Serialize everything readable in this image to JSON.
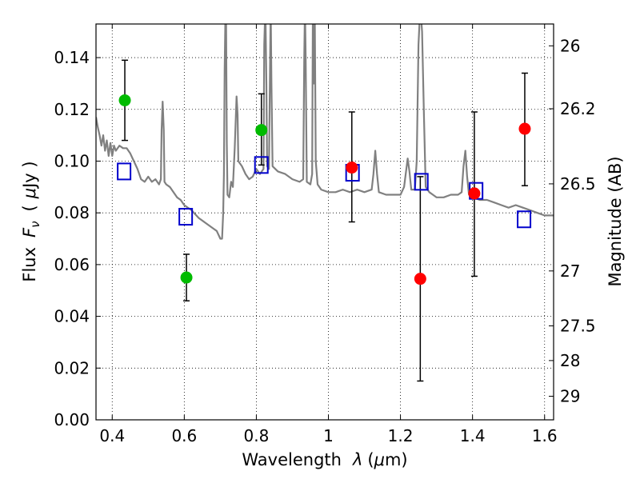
{
  "chart_data": {
    "type": "scatter",
    "title": "",
    "xlabel_parts": {
      "pre": "Wavelength",
      "var": "λ",
      "unit_open": "(",
      "unit_mu": "μ",
      "unit_rest": "m)"
    },
    "ylabel_parts": {
      "pre": "Flux",
      "var": "F",
      "sub": "ν",
      "unit_open": "(",
      "unit_mu": "μ",
      "unit_rest": "Jy )"
    },
    "y2label": "Magnitude (AB)",
    "xlim": [
      0.355,
      1.625
    ],
    "ylim": [
      0.0,
      0.153
    ],
    "grid": true,
    "x_ticks": [
      {
        "v": 0.4,
        "label": "0.4"
      },
      {
        "v": 0.6,
        "label": "0.6"
      },
      {
        "v": 0.8,
        "label": "0.8"
      },
      {
        "v": 1.0,
        "label": "1"
      },
      {
        "v": 1.2,
        "label": "1.2"
      },
      {
        "v": 1.4,
        "label": "1.4"
      },
      {
        "v": 1.6,
        "label": "1.6"
      }
    ],
    "y_ticks": [
      {
        "v": 0.0,
        "label": "0.00"
      },
      {
        "v": 0.02,
        "label": "0.02"
      },
      {
        "v": 0.04,
        "label": "0.04"
      },
      {
        "v": 0.06,
        "label": "0.06"
      },
      {
        "v": 0.08,
        "label": "0.08"
      },
      {
        "v": 0.1,
        "label": "0.10"
      },
      {
        "v": 0.12,
        "label": "0.12"
      },
      {
        "v": 0.14,
        "label": "0.14"
      }
    ],
    "y2_ticks": [
      {
        "mag": 26,
        "label": "26"
      },
      {
        "mag": 26.2,
        "label": "26.2"
      },
      {
        "mag": 26.5,
        "label": "26.5"
      },
      {
        "mag": 27,
        "label": "27"
      },
      {
        "mag": 27.5,
        "label": "27.5"
      },
      {
        "mag": 28,
        "label": "28"
      },
      {
        "mag": 29,
        "label": "29"
      }
    ],
    "colors": {
      "green": "#00bb00",
      "red": "#ff0000",
      "blue": "#0000cc",
      "spectrum": "#808080",
      "errorbar": "#000000"
    },
    "green_points": [
      {
        "x": 0.435,
        "y": 0.1235,
        "ylo": 0.108,
        "yhi": 0.139
      },
      {
        "x": 0.606,
        "y": 0.055,
        "ylo": 0.046,
        "yhi": 0.064
      },
      {
        "x": 0.814,
        "y": 0.112,
        "ylo": 0.0985,
        "yhi": 0.126
      }
    ],
    "red_points": [
      {
        "x": 1.065,
        "y": 0.0975,
        "ylo": 0.0765,
        "yhi": 0.119
      },
      {
        "x": 1.255,
        "y": 0.0545,
        "ylo": 0.015,
        "yhi": 0.094
      },
      {
        "x": 1.405,
        "y": 0.0875,
        "ylo": 0.0555,
        "yhi": 0.119
      },
      {
        "x": 1.545,
        "y": 0.1125,
        "ylo": 0.0905,
        "yhi": 0.134
      }
    ],
    "model_points": [
      {
        "x": 0.433,
        "y": 0.096
      },
      {
        "x": 0.604,
        "y": 0.0785
      },
      {
        "x": 0.814,
        "y": 0.0985
      },
      {
        "x": 1.067,
        "y": 0.0955
      },
      {
        "x": 1.258,
        "y": 0.092
      },
      {
        "x": 1.41,
        "y": 0.0885
      },
      {
        "x": 1.543,
        "y": 0.0775
      }
    ],
    "spectrum": [
      [
        0.355,
        0.117
      ],
      [
        0.36,
        0.113
      ],
      [
        0.365,
        0.11
      ],
      [
        0.37,
        0.106
      ],
      [
        0.375,
        0.11
      ],
      [
        0.38,
        0.104
      ],
      [
        0.385,
        0.108
      ],
      [
        0.39,
        0.102
      ],
      [
        0.395,
        0.107
      ],
      [
        0.4,
        0.102
      ],
      [
        0.405,
        0.106
      ],
      [
        0.41,
        0.104
      ],
      [
        0.42,
        0.106
      ],
      [
        0.43,
        0.105
      ],
      [
        0.44,
        0.105
      ],
      [
        0.45,
        0.103
      ],
      [
        0.46,
        0.1
      ],
      [
        0.47,
        0.097
      ],
      [
        0.48,
        0.093
      ],
      [
        0.49,
        0.092
      ],
      [
        0.5,
        0.094
      ],
      [
        0.51,
        0.092
      ],
      [
        0.52,
        0.093
      ],
      [
        0.53,
        0.091
      ],
      [
        0.535,
        0.093
      ],
      [
        0.537,
        0.112
      ],
      [
        0.54,
        0.123
      ],
      [
        0.543,
        0.112
      ],
      [
        0.545,
        0.092
      ],
      [
        0.55,
        0.091
      ],
      [
        0.56,
        0.09
      ],
      [
        0.57,
        0.088
      ],
      [
        0.58,
        0.086
      ],
      [
        0.59,
        0.085
      ],
      [
        0.6,
        0.083
      ],
      [
        0.62,
        0.081
      ],
      [
        0.64,
        0.078
      ],
      [
        0.66,
        0.076
      ],
      [
        0.68,
        0.074
      ],
      [
        0.69,
        0.073
      ],
      [
        0.7,
        0.07
      ],
      [
        0.705,
        0.07
      ],
      [
        0.708,
        0.08
      ],
      [
        0.71,
        0.095
      ],
      [
        0.712,
        0.135
      ],
      [
        0.714,
        0.155
      ],
      [
        0.716,
        0.155
      ],
      [
        0.718,
        0.107
      ],
      [
        0.72,
        0.087
      ],
      [
        0.725,
        0.086
      ],
      [
        0.73,
        0.092
      ],
      [
        0.735,
        0.09
      ],
      [
        0.74,
        0.105
      ],
      [
        0.745,
        0.125
      ],
      [
        0.748,
        0.118
      ],
      [
        0.75,
        0.1
      ],
      [
        0.76,
        0.098
      ],
      [
        0.77,
        0.095
      ],
      [
        0.78,
        0.093
      ],
      [
        0.79,
        0.094
      ],
      [
        0.8,
        0.097
      ],
      [
        0.81,
        0.095
      ],
      [
        0.82,
        0.097
      ],
      [
        0.822,
        0.145
      ],
      [
        0.825,
        0.16
      ],
      [
        0.828,
        0.13
      ],
      [
        0.83,
        0.098
      ],
      [
        0.835,
        0.097
      ],
      [
        0.838,
        0.135
      ],
      [
        0.84,
        0.16
      ],
      [
        0.842,
        0.13
      ],
      [
        0.845,
        0.098
      ],
      [
        0.86,
        0.096
      ],
      [
        0.88,
        0.095
      ],
      [
        0.9,
        0.093
      ],
      [
        0.92,
        0.092
      ],
      [
        0.93,
        0.093
      ],
      [
        0.933,
        0.14
      ],
      [
        0.935,
        0.16
      ],
      [
        0.937,
        0.14
      ],
      [
        0.94,
        0.092
      ],
      [
        0.95,
        0.091
      ],
      [
        0.955,
        0.095
      ],
      [
        0.957,
        0.16
      ],
      [
        0.96,
        0.13
      ],
      [
        0.962,
        0.16
      ],
      [
        0.965,
        0.1
      ],
      [
        0.97,
        0.091
      ],
      [
        0.98,
        0.089
      ],
      [
        1.0,
        0.088
      ],
      [
        1.02,
        0.088
      ],
      [
        1.04,
        0.089
      ],
      [
        1.06,
        0.088
      ],
      [
        1.08,
        0.089
      ],
      [
        1.1,
        0.088
      ],
      [
        1.12,
        0.089
      ],
      [
        1.125,
        0.095
      ],
      [
        1.13,
        0.104
      ],
      [
        1.135,
        0.095
      ],
      [
        1.14,
        0.088
      ],
      [
        1.16,
        0.087
      ],
      [
        1.18,
        0.087
      ],
      [
        1.2,
        0.087
      ],
      [
        1.21,
        0.09
      ],
      [
        1.22,
        0.101
      ],
      [
        1.225,
        0.096
      ],
      [
        1.23,
        0.089
      ],
      [
        1.24,
        0.089
      ],
      [
        1.245,
        0.1
      ],
      [
        1.25,
        0.145
      ],
      [
        1.255,
        0.16
      ],
      [
        1.26,
        0.15
      ],
      [
        1.265,
        0.118
      ],
      [
        1.27,
        0.09
      ],
      [
        1.28,
        0.088
      ],
      [
        1.29,
        0.087
      ],
      [
        1.3,
        0.086
      ],
      [
        1.32,
        0.086
      ],
      [
        1.34,
        0.087
      ],
      [
        1.36,
        0.087
      ],
      [
        1.37,
        0.088
      ],
      [
        1.375,
        0.098
      ],
      [
        1.38,
        0.104
      ],
      [
        1.385,
        0.094
      ],
      [
        1.39,
        0.087
      ],
      [
        1.4,
        0.086
      ],
      [
        1.42,
        0.085
      ],
      [
        1.44,
        0.085
      ],
      [
        1.46,
        0.084
      ],
      [
        1.48,
        0.083
      ],
      [
        1.5,
        0.082
      ],
      [
        1.52,
        0.083
      ],
      [
        1.54,
        0.082
      ],
      [
        1.56,
        0.081
      ],
      [
        1.58,
        0.08
      ],
      [
        1.6,
        0.079
      ],
      [
        1.625,
        0.079
      ]
    ]
  }
}
